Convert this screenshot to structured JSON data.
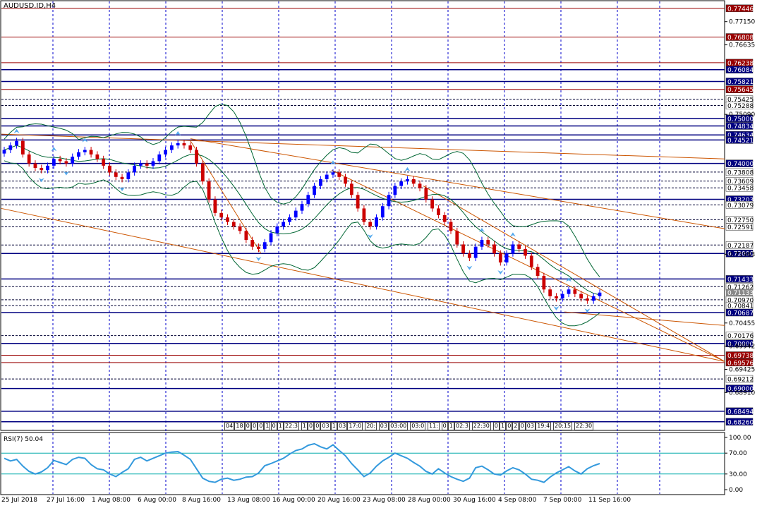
{
  "chart": {
    "symbol_label": "AUDUSD.ID,H4",
    "rsi_label": "RSI(7) 50.04",
    "current_price": "0.71133"
  },
  "colors": {
    "background": "#ffffff",
    "grid": "#0000cc",
    "bull_candle": "#0000ff",
    "bear_candle": "#cc0000",
    "bollinger": "#006633",
    "trendline": "#cc5500",
    "rsi_line": "#3399dd",
    "rsi_levels": "#00aaaa",
    "h_line_solid": "#000080",
    "h_line_red": "#990000"
  },
  "price_axis": {
    "plain_ticks": [
      "0.77150",
      "0.76635",
      "0.75090",
      "0.71983",
      "0.70455",
      "0.69942",
      "0.69425",
      "0.68910"
    ],
    "tagged_levels": [
      {
        "label": "0.77446",
        "style": "red"
      },
      {
        "label": "0.76808",
        "style": "red"
      },
      {
        "label": "0.76238",
        "style": "red"
      },
      {
        "label": "0.76084",
        "style": "navy"
      },
      {
        "label": "0.75821",
        "style": "navy"
      },
      {
        "label": "0.75645",
        "style": "red"
      },
      {
        "label": "0.75425",
        "style": "dotted"
      },
      {
        "label": "0.75288",
        "style": "dotted"
      },
      {
        "label": "0.75000",
        "style": "navy"
      },
      {
        "label": "0.74834",
        "style": "navy"
      },
      {
        "label": "0.74634",
        "style": "navy"
      },
      {
        "label": "0.74521",
        "style": "navy"
      },
      {
        "label": "0.74000",
        "style": "navy"
      },
      {
        "label": "0.73808",
        "style": "dotted"
      },
      {
        "label": "0.73609",
        "style": "dotted"
      },
      {
        "label": "0.73458",
        "style": "dotted"
      },
      {
        "label": "0.73203",
        "style": "navy"
      },
      {
        "label": "0.73079",
        "style": "dotted"
      },
      {
        "label": "0.72750",
        "style": "dotted"
      },
      {
        "label": "0.72591",
        "style": "dotted"
      },
      {
        "label": "0.72187",
        "style": "dotted"
      },
      {
        "label": "0.72000",
        "style": "navy"
      },
      {
        "label": "0.71433",
        "style": "navy"
      },
      {
        "label": "0.71262",
        "style": "dotted"
      },
      {
        "label": "0.70970",
        "style": "dotted"
      },
      {
        "label": "0.70841",
        "style": "dotted"
      },
      {
        "label": "0.70687",
        "style": "navy"
      },
      {
        "label": "0.70176",
        "style": "dotted"
      },
      {
        "label": "0.70000",
        "style": "navy"
      },
      {
        "label": "0.69738",
        "style": "red"
      },
      {
        "label": "0.69576",
        "style": "red"
      },
      {
        "label": "0.69212",
        "style": "dotted"
      },
      {
        "label": "0.69000",
        "style": "navy"
      },
      {
        "label": "0.68494",
        "style": "navy"
      },
      {
        "label": "0.68260",
        "style": "navy"
      }
    ]
  },
  "rsi_axis": [
    "100.00",
    "70.00",
    "30.00",
    "0.00"
  ],
  "time_axis": [
    "25 Jul 2018",
    "27 Jul 16:00",
    "1 Aug 08:00",
    "6 Aug 00:00",
    "8 Aug 16:00",
    "13 Aug 08:00",
    "16 Aug 00:00",
    "20 Aug 16:00",
    "23 Aug 08:00",
    "28 Aug 00:00",
    "30 Aug 16:00",
    "4 Sep 08:00",
    "7 Sep 00:00",
    "11 Sep 16:00"
  ],
  "session_tags": [
    "04",
    "18",
    "0",
    "0",
    "0",
    "1",
    "0",
    "1",
    "22:3",
    "1",
    "0",
    "0",
    "03",
    "1",
    "03",
    "17:0",
    "20:",
    "03",
    "03:00",
    "03:0",
    "11:",
    "0",
    "1",
    "02:3",
    "22:30",
    "0",
    "1",
    "0",
    "2",
    "0",
    "03",
    "19:4",
    "20:15",
    "22:30"
  ],
  "chart_data": {
    "type": "candlestick",
    "title": "AUDUSD.ID,H4",
    "close": [
      0.743,
      0.744,
      0.745,
      0.742,
      0.74,
      0.739,
      0.7385,
      0.7395,
      0.741,
      0.7405,
      0.74,
      0.7415,
      0.7425,
      0.743,
      0.742,
      0.741,
      0.7395,
      0.738,
      0.737,
      0.7365,
      0.738,
      0.7395,
      0.74,
      0.7395,
      0.7405,
      0.742,
      0.743,
      0.744,
      0.7445,
      0.744,
      0.743,
      0.74,
      0.736,
      0.732,
      0.729,
      0.728,
      0.727,
      0.726,
      0.725,
      0.723,
      0.7215,
      0.721,
      0.7225,
      0.7245,
      0.726,
      0.727,
      0.728,
      0.7295,
      0.731,
      0.733,
      0.735,
      0.7365,
      0.7375,
      0.738,
      0.737,
      0.7355,
      0.733,
      0.73,
      0.727,
      0.726,
      0.728,
      0.7305,
      0.733,
      0.735,
      0.736,
      0.7365,
      0.7355,
      0.7345,
      0.732,
      0.73,
      0.7285,
      0.727,
      0.725,
      0.722,
      0.72,
      0.719,
      0.7215,
      0.723,
      0.722,
      0.72,
      0.718,
      0.72,
      0.722,
      0.721,
      0.7195,
      0.717,
      0.715,
      0.712,
      0.7105,
      0.71,
      0.711,
      0.712,
      0.711,
      0.71,
      0.7095,
      0.7105,
      0.7113
    ],
    "rsi": [
      60,
      55,
      58,
      45,
      35,
      30,
      34,
      42,
      56,
      52,
      48,
      58,
      62,
      60,
      48,
      40,
      38,
      30,
      25,
      33,
      40,
      58,
      62,
      55,
      60,
      65,
      70,
      72,
      73,
      66,
      58,
      40,
      22,
      16,
      14,
      20,
      22,
      18,
      20,
      24,
      25,
      32,
      46,
      50,
      55,
      60,
      68,
      75,
      78,
      85,
      88,
      82,
      78,
      86,
      75,
      65,
      50,
      38,
      25,
      32,
      45,
      55,
      62,
      70,
      65,
      60,
      52,
      45,
      35,
      30,
      40,
      32,
      25,
      20,
      16,
      22,
      42,
      45,
      38,
      30,
      28,
      36,
      42,
      38,
      30,
      20,
      18,
      14,
      24,
      32,
      38,
      44,
      36,
      30,
      40,
      46,
      50
    ],
    "rsi_levels": [
      70,
      30
    ],
    "ylim": [
      0.681,
      0.776
    ],
    "rsi_ylim": [
      0,
      100
    ]
  }
}
